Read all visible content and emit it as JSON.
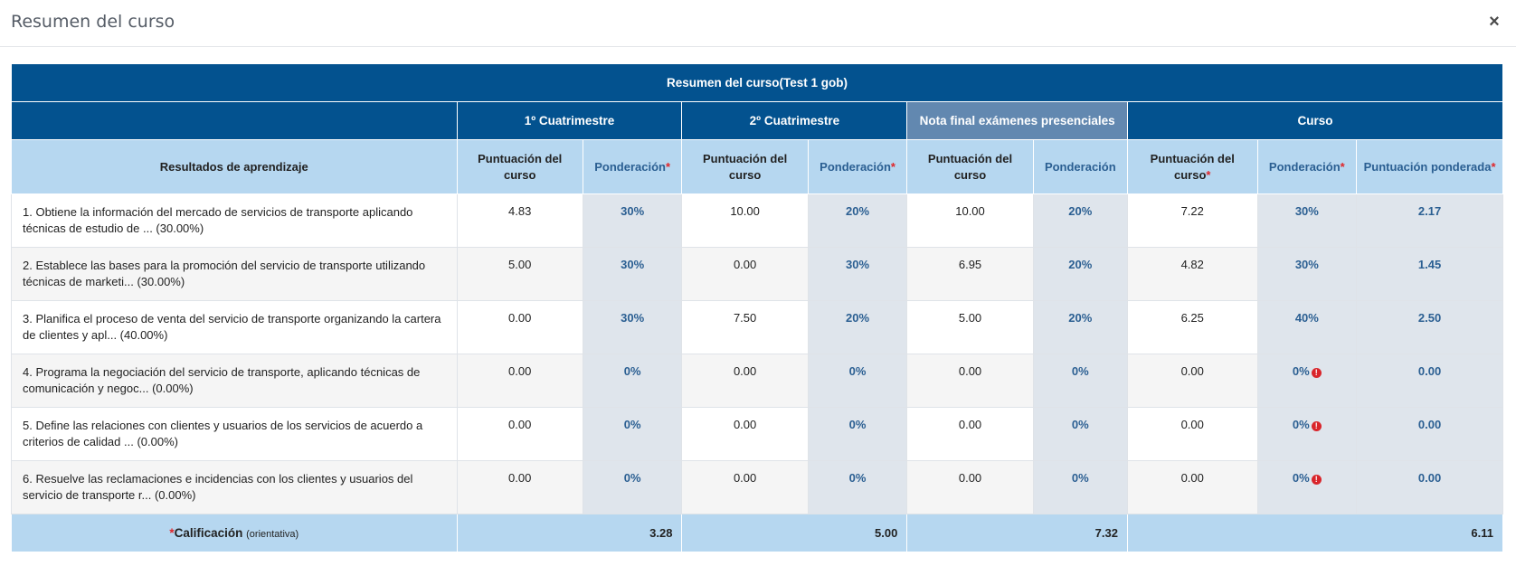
{
  "modal": {
    "title": "Resumen del curso",
    "close_icon": "×"
  },
  "table": {
    "title": "Resumen del curso(Test 1 gob)",
    "groups": [
      {
        "label": "1º Cuatrimestre"
      },
      {
        "label": "2º Cuatrimestre"
      },
      {
        "label": "Nota final exámenes presenciales"
      },
      {
        "label": "Curso"
      }
    ],
    "subheaders": {
      "results": "Resultados de aprendizaje",
      "score": "Puntuación del curso",
      "score_curso": "Puntuación del curso",
      "weight": "Ponderación",
      "weighted_score": "Puntuación ponderada",
      "required_mark": "*"
    },
    "rows": [
      {
        "name": "1. Obtiene la información del mercado de servicios de transporte aplicando técnicas de estudio de ... (30.00%)",
        "c1_score": "4.83",
        "c1_w": "30%",
        "c2_score": "10.00",
        "c2_w": "20%",
        "nf_score": "10.00",
        "nf_w": "20%",
        "cu_score": "7.22",
        "cu_w": "30%",
        "cu_pond": "2.17",
        "warn": false
      },
      {
        "name": "2. Establece las bases para la promoción del servicio de transporte utilizando técnicas de marketi... (30.00%)",
        "c1_score": "5.00",
        "c1_w": "30%",
        "c2_score": "0.00",
        "c2_w": "30%",
        "nf_score": "6.95",
        "nf_w": "20%",
        "cu_score": "4.82",
        "cu_w": "30%",
        "cu_pond": "1.45",
        "warn": false
      },
      {
        "name": "3. Planifica el proceso de venta del servicio de transporte organizando la cartera de clientes y apl... (40.00%)",
        "c1_score": "0.00",
        "c1_w": "30%",
        "c2_score": "7.50",
        "c2_w": "20%",
        "nf_score": "5.00",
        "nf_w": "20%",
        "cu_score": "6.25",
        "cu_w": "40%",
        "cu_pond": "2.50",
        "warn": false
      },
      {
        "name": "4. Programa la negociación del servicio de transporte, aplicando técnicas de comunicación y negoc... (0.00%)",
        "c1_score": "0.00",
        "c1_w": "0%",
        "c2_score": "0.00",
        "c2_w": "0%",
        "nf_score": "0.00",
        "nf_w": "0%",
        "cu_score": "0.00",
        "cu_w": "0%",
        "cu_pond": "0.00",
        "warn": true
      },
      {
        "name": "5. Define las relaciones con clientes y usuarios de los servicios de acuerdo a criterios de calidad ... (0.00%)",
        "c1_score": "0.00",
        "c1_w": "0%",
        "c2_score": "0.00",
        "c2_w": "0%",
        "nf_score": "0.00",
        "nf_w": "0%",
        "cu_score": "0.00",
        "cu_w": "0%",
        "cu_pond": "0.00",
        "warn": true
      },
      {
        "name": "6. Resuelve las reclamaciones e incidencias con los clientes y usuarios del servicio de transporte r... (0.00%)",
        "c1_score": "0.00",
        "c1_w": "0%",
        "c2_score": "0.00",
        "c2_w": "0%",
        "nf_score": "0.00",
        "nf_w": "0%",
        "cu_score": "0.00",
        "cu_w": "0%",
        "cu_pond": "0.00",
        "warn": true
      }
    ],
    "total": {
      "label": "Calificación",
      "note": "(orientativa)",
      "c1": "3.28",
      "c2": "5.00",
      "nf": "7.32",
      "curso": "6.11"
    }
  },
  "colors": {
    "header_dark": "#03528f",
    "header_light": "#b6d7f0",
    "weight_text": "#2b5f92",
    "warning": "#d9252b"
  },
  "icons": {
    "warning_icon": "!"
  }
}
